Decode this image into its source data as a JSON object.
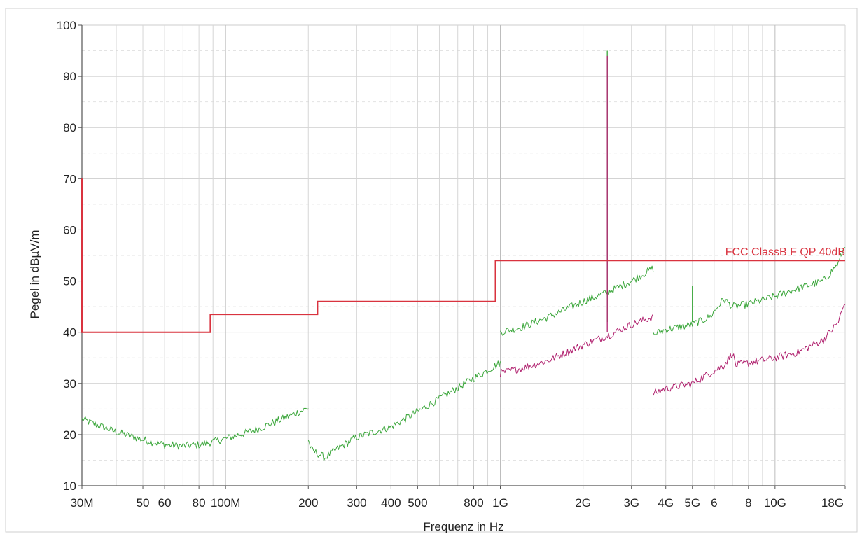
{
  "chart_data": {
    "type": "line",
    "xlabel": "Frequenz in Hz",
    "ylabel": "Pegel in dBµV/m",
    "x_scale": "log",
    "xlim": [
      30000000,
      18000000000
    ],
    "ylim": [
      10,
      100
    ],
    "grid": true,
    "y_ticks": [
      10,
      20,
      30,
      40,
      50,
      60,
      70,
      80,
      90,
      100
    ],
    "x_ticks": [
      {
        "label": "30M",
        "value": 30000000
      },
      {
        "label": "50",
        "value": 50000000
      },
      {
        "label": "60",
        "value": 60000000
      },
      {
        "label": "80",
        "value": 80000000
      },
      {
        "label": "100M",
        "value": 100000000
      },
      {
        "label": "200",
        "value": 200000000
      },
      {
        "label": "300",
        "value": 300000000
      },
      {
        "label": "400",
        "value": 400000000
      },
      {
        "label": "500",
        "value": 500000000
      },
      {
        "label": "800",
        "value": 800000000
      },
      {
        "label": "1G",
        "value": 1000000000
      },
      {
        "label": "2G",
        "value": 2000000000
      },
      {
        "label": "3G",
        "value": 3000000000
      },
      {
        "label": "4G",
        "value": 4000000000
      },
      {
        "label": "5G",
        "value": 5000000000
      },
      {
        "label": "6",
        "value": 6000000000
      },
      {
        "label": "8",
        "value": 8000000000
      },
      {
        "label": "10G",
        "value": 10000000000
      },
      {
        "label": "18G",
        "value": 18000000000
      }
    ],
    "limit_line": {
      "name": "FCC ClassB F QP 40dB",
      "color": "#d9333f",
      "points": [
        [
          30000000,
          70
        ],
        [
          30000000,
          40
        ],
        [
          88000000,
          40
        ],
        [
          88000000,
          43.5
        ],
        [
          216000000,
          43.5
        ],
        [
          216000000,
          46
        ],
        [
          960000000,
          46
        ],
        [
          960000000,
          54
        ],
        [
          18000000000,
          54
        ]
      ]
    },
    "series": [
      {
        "color": "#3aa63a",
        "segments": [
          [
            [
              30000000,
              23
            ],
            [
              40000000,
              20.5
            ],
            [
              50000000,
              19
            ],
            [
              60000000,
              18
            ],
            [
              70000000,
              17.8
            ],
            [
              80000000,
              18
            ],
            [
              100000000,
              19.2
            ],
            [
              130000000,
              21
            ],
            [
              160000000,
              23
            ],
            [
              200000000,
              25.2
            ]
          ],
          [
            [
              200000000,
              19
            ],
            [
              205000000,
              17
            ],
            [
              230000000,
              15.5
            ],
            [
              260000000,
              17.5
            ],
            [
              300000000,
              19.5
            ],
            [
              400000000,
              21.5
            ],
            [
              500000000,
              24.5
            ],
            [
              600000000,
              27
            ],
            [
              800000000,
              31
            ],
            [
              1000000000,
              34
            ]
          ],
          [
            [
              1000000000,
              40
            ],
            [
              1200000000,
              41
            ],
            [
              1500000000,
              43
            ],
            [
              2000000000,
              46
            ],
            [
              2500000000,
              48
            ],
            [
              3000000000,
              50
            ],
            [
              3600000000,
              52.5
            ]
          ],
          [
            [
              3600000000,
              39.5
            ],
            [
              4000000000,
              40.5
            ],
            [
              4500000000,
              41
            ],
            [
              5000000000,
              41.5
            ],
            [
              5800000000,
              43
            ],
            [
              6500000000,
              46.5
            ],
            [
              7000000000,
              45
            ],
            [
              8000000000,
              45.5
            ],
            [
              10000000000,
              47
            ],
            [
              12000000000,
              48.5
            ],
            [
              15000000000,
              50
            ],
            [
              17000000000,
              53.5
            ],
            [
              18000000000,
              57
            ]
          ]
        ],
        "spikes": [
          {
            "x": 2450000000,
            "y": 95
          },
          {
            "x": 5000000000,
            "y": 49
          }
        ]
      },
      {
        "color": "#b0206e",
        "segments": [
          [
            [
              1000000000,
              32
            ],
            [
              1200000000,
              33
            ],
            [
              1500000000,
              34.5
            ],
            [
              2000000000,
              37.5
            ],
            [
              2500000000,
              39.5
            ],
            [
              3000000000,
              41.5
            ],
            [
              3600000000,
              43
            ]
          ],
          [
            [
              3600000000,
              28
            ],
            [
              4000000000,
              29
            ],
            [
              5000000000,
              30
            ],
            [
              6000000000,
              32.5
            ],
            [
              6500000000,
              33.5
            ],
            [
              7000000000,
              36
            ],
            [
              7200000000,
              33.5
            ],
            [
              8000000000,
              34
            ],
            [
              10000000000,
              35
            ],
            [
              12000000000,
              36
            ],
            [
              15000000000,
              38.5
            ],
            [
              17000000000,
              42
            ],
            [
              18000000000,
              46
            ]
          ]
        ],
        "spikes": [
          {
            "x": 2450000000,
            "y": 94
          }
        ]
      }
    ]
  }
}
